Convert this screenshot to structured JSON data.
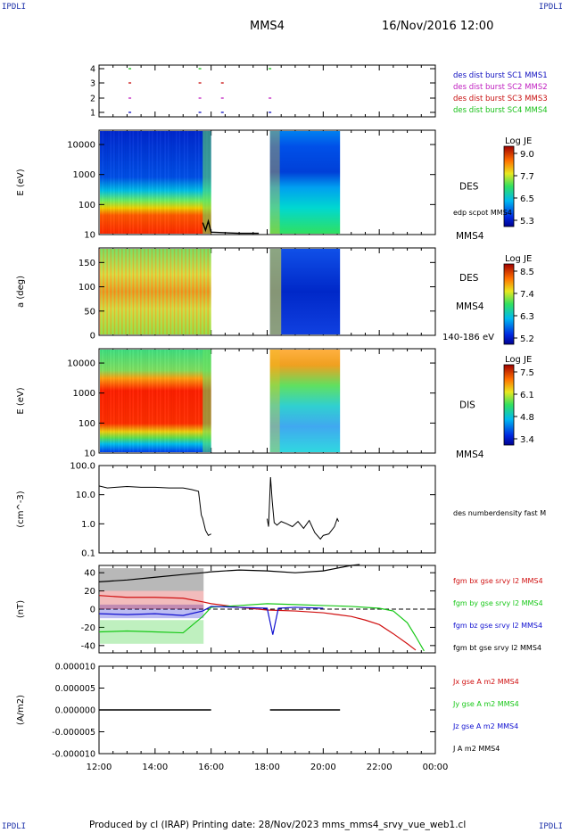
{
  "corners": {
    "tl": "IPDLI",
    "tr": "IPDLI",
    "bl": "IPDLI",
    "br": "IPDLI"
  },
  "header": {
    "spacecraft": "MMS4",
    "datetime": "16/Nov/2016 12:00"
  },
  "footer": {
    "text": "Produced by cl (IRAP)   Printing date: 28/Nov/2023   mms_mms4_srvy_vue_web1.cl"
  },
  "x_ticks": [
    "12:00",
    "14:00",
    "16:00",
    "18:00",
    "20:00",
    "22:00",
    "00:00"
  ],
  "colors": {
    "bx": "#d01010",
    "by": "#18c818",
    "bz": "#1010d0",
    "bt": "#000000",
    "sc1": "#1010c0",
    "sc2": "#c020c0",
    "sc3": "#c81010",
    "sc4": "#18c018"
  },
  "chart_data": [
    {
      "type": "scatter",
      "id": "burst",
      "y_ticks": [
        "4",
        "3",
        "2",
        "1"
      ],
      "legend": [
        {
          "label": "des dist burst SC1 MMS1",
          "color": "#1010c0"
        },
        {
          "label": "des dist burst SC2 MMS2",
          "color": "#c020c0"
        },
        {
          "label": "des dist burst SC3 MMS3",
          "color": "#c81010"
        },
        {
          "label": "des dist burst SC4 MMS4",
          "color": "#18c018"
        }
      ],
      "marks": [
        {
          "sc": 4,
          "x": [
            13.1,
            15.6,
            18.1
          ]
        },
        {
          "sc": 3,
          "x": [
            13.1,
            15.6,
            16.4
          ]
        },
        {
          "sc": 2,
          "x": [
            13.1,
            15.6,
            16.4,
            18.1
          ]
        },
        {
          "sc": 1,
          "x": [
            13.1,
            15.6,
            16.4,
            18.1
          ]
        }
      ]
    },
    {
      "type": "heatmap",
      "id": "des-energy",
      "ylabel": "E (eV)",
      "instrument": "DES",
      "y_scale": "log",
      "ylim": [
        10,
        30000
      ],
      "y_ticks": [
        "10000",
        "1000",
        "100",
        "10"
      ],
      "colorbar": {
        "title": "Log JE",
        "ticks": [
          "9.0",
          "7.7",
          "6.5",
          "5.3"
        ]
      },
      "data_extent": [
        [
          12.0,
          16.0
        ],
        [
          18.1,
          20.6
        ]
      ],
      "overlay_label": "edp scpot MMS4",
      "bottom_label": "MMS4"
    },
    {
      "type": "heatmap",
      "id": "des-pitch",
      "ylabel": "a (deg)",
      "instrument": "DES",
      "ylim": [
        0,
        180
      ],
      "y_ticks": [
        "150",
        "100",
        "50",
        "0"
      ],
      "colorbar": {
        "title": "Log JE",
        "ticks": [
          "8.5",
          "7.4",
          "6.3",
          "5.2"
        ]
      },
      "data_extent": [
        [
          12.0,
          16.0
        ],
        [
          18.1,
          20.6
        ]
      ],
      "side_label": "MMS4",
      "bottom_label": "140-186 eV"
    },
    {
      "type": "heatmap",
      "id": "dis-energy",
      "ylabel": "E (eV)",
      "instrument": "DIS",
      "y_scale": "log",
      "ylim": [
        10,
        30000
      ],
      "y_ticks": [
        "10000",
        "1000",
        "100",
        "10"
      ],
      "colorbar": {
        "title": "Log JE",
        "ticks": [
          "7.5",
          "6.1",
          "4.8",
          "3.4"
        ]
      },
      "data_extent": [
        [
          12.0,
          16.0
        ],
        [
          18.1,
          20.6
        ]
      ],
      "bottom_label": "MMS4"
    },
    {
      "type": "line",
      "id": "density",
      "ylabel": "(cm^-3)",
      "y_scale": "log",
      "ylim": [
        0.1,
        100
      ],
      "y_ticks": [
        "100.0",
        "10.0",
        "1.0",
        "0.1"
      ],
      "series": [
        {
          "name": "des numberdensity fast M",
          "x": [
            12.0,
            12.3,
            12.6,
            13.0,
            13.5,
            14.0,
            14.5,
            15.0,
            15.3,
            15.55,
            15.65,
            15.7,
            15.8,
            15.9,
            16.0,
            18.0,
            18.05,
            18.12,
            18.18,
            18.25,
            18.35,
            18.5,
            18.7,
            18.9,
            19.1,
            19.3,
            19.5,
            19.7,
            19.9,
            20.0,
            20.2,
            20.4,
            20.5,
            20.55
          ],
          "y": [
            20,
            17,
            18,
            19,
            18,
            18,
            17,
            17,
            15,
            13,
            2,
            1.5,
            0.6,
            0.4,
            0.45,
            1.5,
            0.8,
            40,
            6,
            1.1,
            0.9,
            1.2,
            1.0,
            0.8,
            1.2,
            0.7,
            1.3,
            0.5,
            0.3,
            0.4,
            0.45,
            0.8,
            1.5,
            1.2
          ]
        }
      ]
    },
    {
      "type": "line",
      "id": "fgm",
      "ylabel": "(nT)",
      "ylim": [
        -48,
        48
      ],
      "y_ticks": [
        "40",
        "20",
        "0",
        "-20",
        "-40"
      ],
      "series": [
        {
          "name": "fgm bx gse srvy l2 MMS4",
          "color": "#d01010",
          "x": [
            12.0,
            13.0,
            14.0,
            15.0,
            15.7,
            16.0,
            17.0,
            18.0,
            19.0,
            20.0,
            20.5,
            21.0,
            21.5,
            22.0,
            22.5,
            23.0,
            23.3
          ],
          "y": [
            15,
            13,
            13,
            12,
            8,
            6,
            2,
            -1,
            -2,
            -4,
            -6,
            -8,
            -12,
            -17,
            -27,
            -38,
            -45
          ]
        },
        {
          "name": "fgm by gse srvy l2 MMS4",
          "color": "#18c818",
          "x": [
            12.0,
            13.0,
            14.0,
            15.0,
            15.7,
            16.0,
            17.0,
            18.0,
            19.0,
            20.0,
            21.0,
            22.0,
            22.5,
            23.0,
            23.3,
            23.6
          ],
          "y": [
            -25,
            -24,
            -25,
            -26,
            -8,
            2,
            4,
            6,
            5,
            4,
            3,
            1,
            -2,
            -15,
            -30,
            -46
          ]
        },
        {
          "name": "fgm bz gse srvy l2 MMS4",
          "color": "#1010d0",
          "x": [
            12.0,
            13.0,
            14.0,
            15.0,
            15.7,
            16.0,
            17.0,
            18.0,
            18.2,
            18.4,
            19.0,
            20.0
          ],
          "y": [
            -5,
            -6,
            -5,
            -7,
            -2,
            3,
            2,
            1,
            -28,
            1,
            2,
            1
          ]
        },
        {
          "name": "fgm bt gse srvy l2 MMS4",
          "color": "#000000",
          "x": [
            12.0,
            13.0,
            14.0,
            15.0,
            15.7,
            16.0,
            17.0,
            18.0,
            19.0,
            20.0,
            20.5,
            21.0,
            21.3
          ],
          "y": [
            30,
            32,
            35,
            38,
            40,
            41,
            43,
            42,
            40,
            42,
            45,
            48,
            49
          ]
        }
      ],
      "reference_line_y": 0
    },
    {
      "type": "line",
      "id": "current",
      "ylabel": "(A/m2)",
      "ylim": [
        -0.0001,
        0.0001
      ],
      "y_ticks": [
        "0.000010",
        "0.000005",
        "0.000000",
        "-0.000005",
        "-0.000010"
      ],
      "series": [
        {
          "name": "Jx gse A m2 MMS4",
          "color": "#d01010"
        },
        {
          "name": "Jy gse A m2 MMS4",
          "color": "#18c818"
        },
        {
          "name": "Jz gse A m2 MMS4",
          "color": "#1010d0"
        },
        {
          "name": "J A m2 MMS4",
          "color": "#000000"
        }
      ],
      "x": [
        12.0,
        16.0,
        18.1,
        20.6
      ],
      "y": [
        0,
        0,
        0,
        0
      ]
    }
  ]
}
